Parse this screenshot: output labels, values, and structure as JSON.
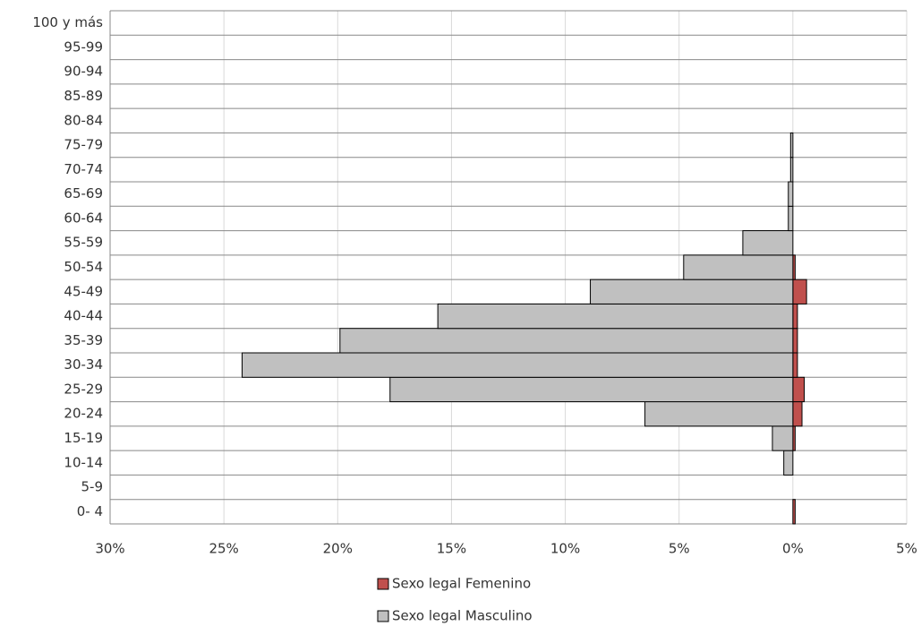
{
  "chart_data": {
    "type": "pyramid",
    "categories": [
      "0- 4",
      "5-9",
      "10-14",
      "15-19",
      "20-24",
      "25-29",
      "30-34",
      "35-39",
      "40-44",
      "45-49",
      "50-54",
      "55-59",
      "60-64",
      "65-69",
      "70-74",
      "75-79",
      "80-84",
      "85-89",
      "90-94",
      "95-99",
      "100 y más"
    ],
    "series": [
      {
        "name": "Sexo legal Femenino",
        "color": "#c0504d",
        "values": [
          0.1,
          0,
          0,
          0.1,
          0.4,
          0.5,
          0.2,
          0.2,
          0.2,
          0.6,
          0.1,
          0,
          0,
          0,
          0,
          0,
          0,
          0,
          0,
          0,
          0
        ]
      },
      {
        "name": "Sexo legal Masculino",
        "color": "#c0c0c0",
        "values": [
          0,
          0,
          -0.4,
          -0.9,
          -6.5,
          -17.7,
          -24.2,
          -19.9,
          -15.6,
          -8.9,
          -4.8,
          -2.2,
          -0.2,
          -0.2,
          -0.1,
          -0.1,
          0,
          0,
          0,
          0,
          0
        ]
      }
    ],
    "xlim": [
      -30,
      5
    ],
    "xticks": [
      {
        "value": -30,
        "label": "30%"
      },
      {
        "value": -25,
        "label": "25%"
      },
      {
        "value": -20,
        "label": "20%"
      },
      {
        "value": -15,
        "label": "15%"
      },
      {
        "value": -10,
        "label": "10%"
      },
      {
        "value": -5,
        "label": "5%"
      },
      {
        "value": 0,
        "label": "0%"
      },
      {
        "value": 5,
        "label": "5%"
      }
    ],
    "grid": true
  }
}
